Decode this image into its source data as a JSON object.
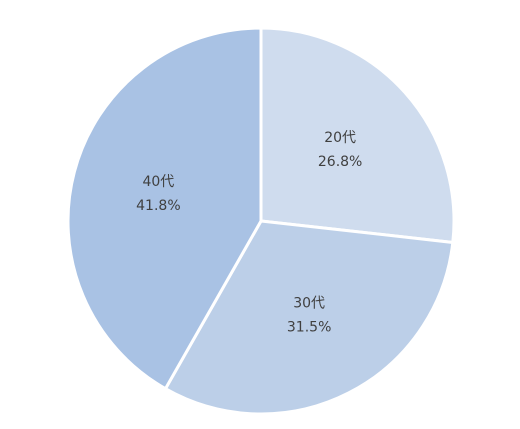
{
  "chart_data": {
    "type": "pie",
    "categories": [
      "20代",
      "30代",
      "40代"
    ],
    "values": [
      26.8,
      31.5,
      41.8
    ],
    "value_labels": [
      "26.8%",
      "31.5%",
      "41.8%"
    ],
    "colors": [
      "#cfdcee",
      "#bccfe8",
      "#a9c2e4"
    ]
  }
}
